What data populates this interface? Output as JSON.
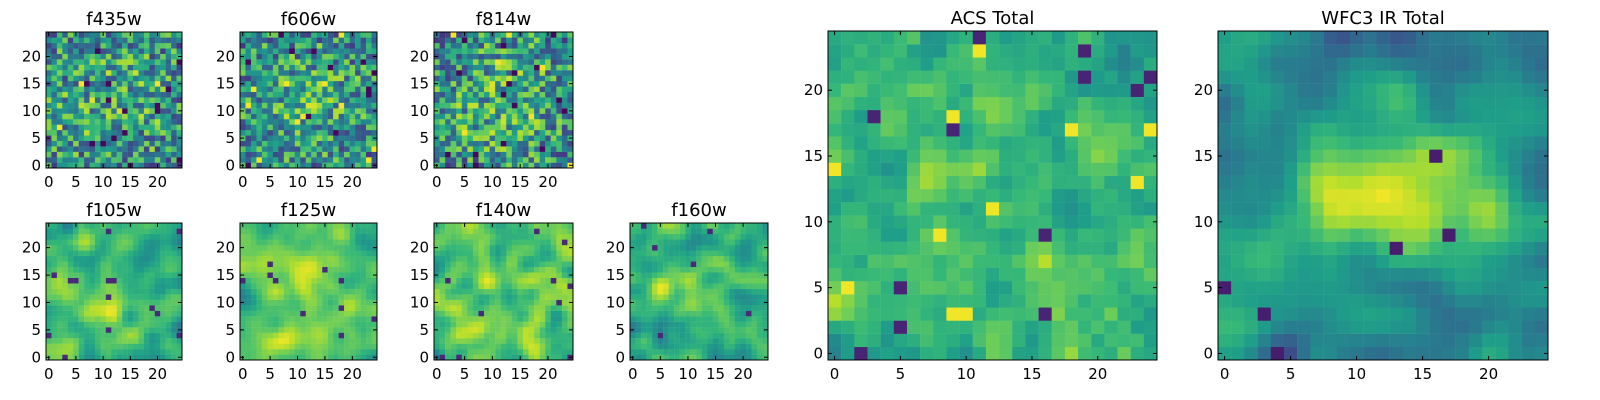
{
  "chart_data": [
    {
      "type": "heatmap",
      "title": "f435w",
      "x_ticks": [
        "0",
        "5",
        "10",
        "15",
        "20"
      ],
      "y_ticks": [
        "0",
        "5",
        "10",
        "15",
        "20"
      ],
      "xlim": [
        -0.5,
        24.5
      ],
      "ylim": [
        -0.5,
        24.5
      ],
      "grid_size": 25,
      "texture": "noisy",
      "seed": 1,
      "colormap": "viridis"
    },
    {
      "type": "heatmap",
      "title": "f606w",
      "x_ticks": [
        "0",
        "5",
        "10",
        "15",
        "20"
      ],
      "y_ticks": [
        "0",
        "5",
        "10",
        "15",
        "20"
      ],
      "xlim": [
        -0.5,
        24.5
      ],
      "ylim": [
        -0.5,
        24.5
      ],
      "grid_size": 25,
      "texture": "noisy",
      "seed": 2,
      "colormap": "viridis"
    },
    {
      "type": "heatmap",
      "title": "f814w",
      "x_ticks": [
        "0",
        "5",
        "10",
        "15",
        "20"
      ],
      "y_ticks": [
        "0",
        "5",
        "10",
        "15",
        "20"
      ],
      "xlim": [
        -0.5,
        24.5
      ],
      "ylim": [
        -0.5,
        24.5
      ],
      "grid_size": 25,
      "texture": "noisy",
      "seed": 3,
      "colormap": "viridis"
    },
    {
      "type": "heatmap",
      "title": "f105w",
      "x_ticks": [
        "0",
        "5",
        "10",
        "15",
        "20"
      ],
      "y_ticks": [
        "0",
        "5",
        "10",
        "15",
        "20"
      ],
      "xlim": [
        -0.5,
        24.5
      ],
      "ylim": [
        -0.5,
        24.5
      ],
      "grid_size": 25,
      "texture": "smooth",
      "seed": 4,
      "colormap": "viridis"
    },
    {
      "type": "heatmap",
      "title": "f125w",
      "x_ticks": [
        "0",
        "5",
        "10",
        "15",
        "20"
      ],
      "y_ticks": [
        "0",
        "5",
        "10",
        "15",
        "20"
      ],
      "xlim": [
        -0.5,
        24.5
      ],
      "ylim": [
        -0.5,
        24.5
      ],
      "grid_size": 25,
      "texture": "smooth",
      "seed": 5,
      "colormap": "viridis"
    },
    {
      "type": "heatmap",
      "title": "f140w",
      "x_ticks": [
        "0",
        "5",
        "10",
        "15",
        "20"
      ],
      "y_ticks": [
        "0",
        "5",
        "10",
        "15",
        "20"
      ],
      "xlim": [
        -0.5,
        24.5
      ],
      "ylim": [
        -0.5,
        24.5
      ],
      "grid_size": 25,
      "texture": "smooth",
      "seed": 6,
      "colormap": "viridis"
    },
    {
      "type": "heatmap",
      "title": "f160w",
      "x_ticks": [
        "0",
        "5",
        "10",
        "15",
        "20"
      ],
      "y_ticks": [
        "0",
        "5",
        "10",
        "15",
        "20"
      ],
      "xlim": [
        -0.5,
        24.5
      ],
      "ylim": [
        -0.5,
        24.5
      ],
      "grid_size": 25,
      "texture": "smooth",
      "seed": 7,
      "colormap": "viridis"
    },
    {
      "type": "heatmap",
      "title": "ACS Total",
      "x_ticks": [
        "0",
        "5",
        "10",
        "15",
        "20"
      ],
      "y_ticks": [
        "0",
        "5",
        "10",
        "15",
        "20"
      ],
      "xlim": [
        -0.5,
        24.5
      ],
      "ylim": [
        -0.5,
        24.5
      ],
      "grid_size": 25,
      "texture": "noisy-mid",
      "seed": 8,
      "colormap": "viridis"
    },
    {
      "type": "heatmap",
      "title": "WFC3 IR Total",
      "x_ticks": [
        "0",
        "5",
        "10",
        "15",
        "20"
      ],
      "y_ticks": [
        "0",
        "5",
        "10",
        "15",
        "20"
      ],
      "xlim": [
        -0.5,
        24.5
      ],
      "ylim": [
        -0.5,
        24.5
      ],
      "grid_size": 25,
      "texture": "blob",
      "seed": 9,
      "colormap": "viridis"
    }
  ]
}
